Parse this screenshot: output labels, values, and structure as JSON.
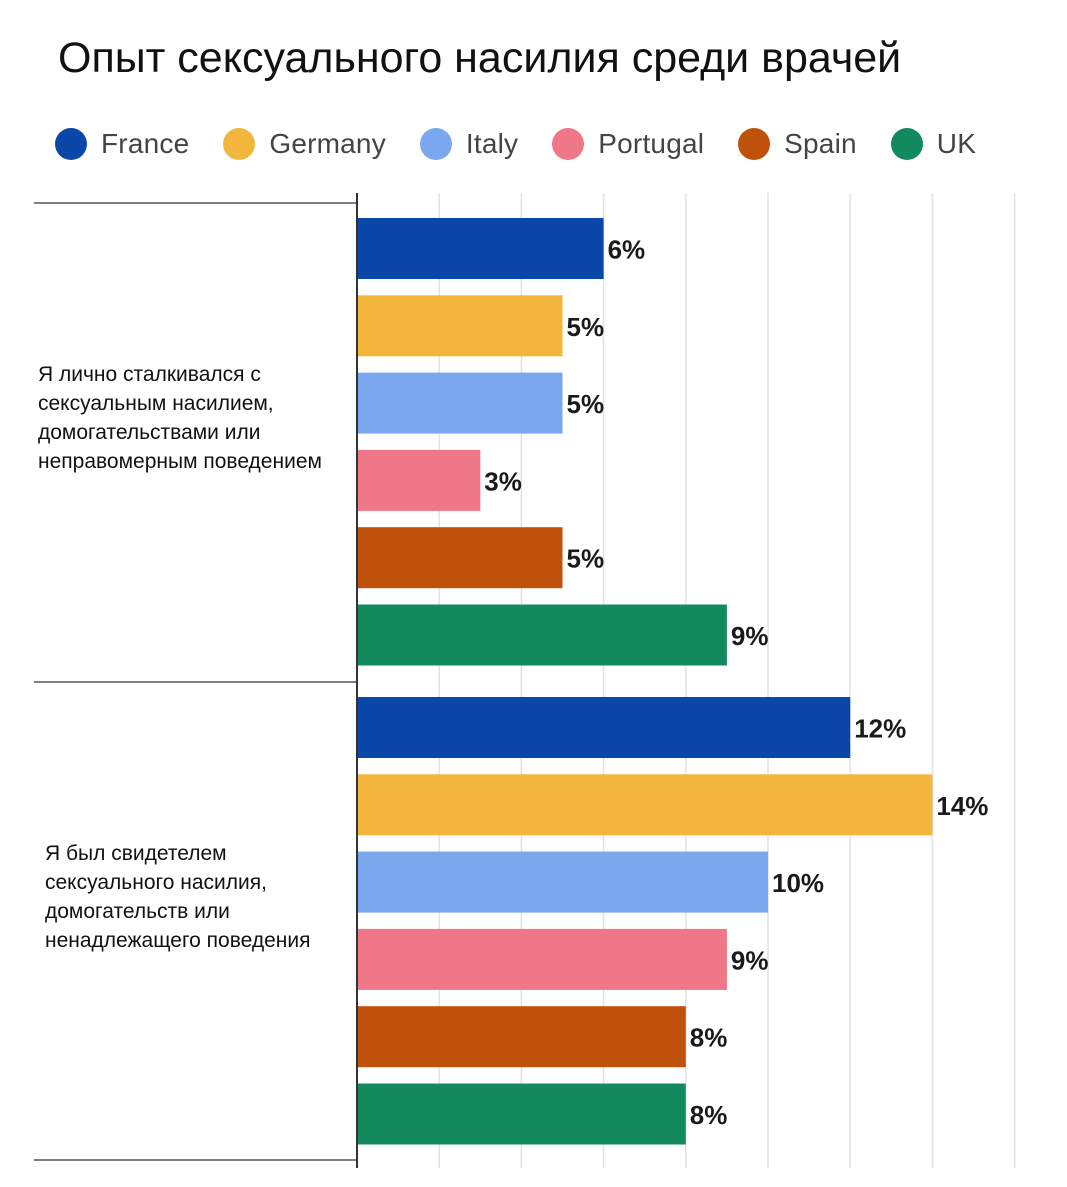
{
  "chart_data": {
    "type": "bar",
    "orientation": "horizontal",
    "title": "Опыт сексуального насилия среди врачей",
    "categories": [
      "Я лично сталкивался с сексуальным насилием, домогательствами или неправомерным поведением",
      "Я был свидетелем сексуального насилия, домогательств или ненадлежащего поведения"
    ],
    "series": [
      {
        "name": "France",
        "color": "#0a47a9",
        "values": [
          6,
          12
        ],
        "labels": [
          "6%",
          "12%"
        ]
      },
      {
        "name": "Germany",
        "color": "#f3b63c",
        "values": [
          5,
          14
        ],
        "labels": [
          "5%",
          "14%"
        ]
      },
      {
        "name": "Italy",
        "color": "#79a8ef",
        "values": [
          5,
          10
        ],
        "labels": [
          "5%",
          "10%"
        ]
      },
      {
        "name": "Portugal",
        "color": "#f07787",
        "values": [
          3,
          9
        ],
        "labels": [
          "3%",
          "9%"
        ]
      },
      {
        "name": "Spain",
        "color": "#c0510a",
        "values": [
          5,
          8
        ],
        "labels": [
          "5%",
          "8%"
        ]
      },
      {
        "name": "UK",
        "color": "#138a5e",
        "values": [
          9,
          8
        ],
        "labels": [
          "9%",
          "8%"
        ]
      }
    ],
    "xlim": [
      0,
      16
    ],
    "grid": true,
    "legend": "top",
    "xlabel": "",
    "ylabel": ""
  }
}
